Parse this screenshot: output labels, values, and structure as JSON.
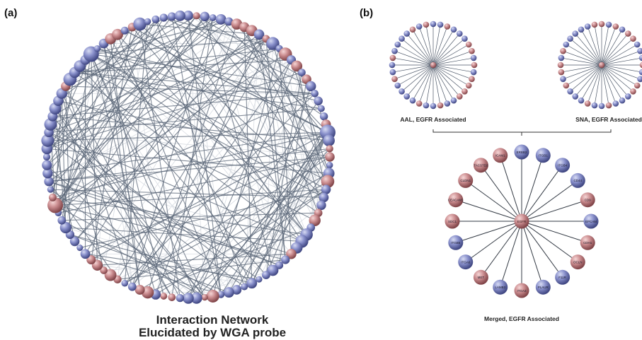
{
  "panels": {
    "a": {
      "label": "(a)",
      "caption_line1": "Interaction Network",
      "caption_line2": "Elucidated by WGA probe",
      "node_count": 108,
      "edge_count": 150
    },
    "b": {
      "label": "(b)",
      "aal_caption": "AAL, EGFR Associated",
      "sna_caption": "SNA, EGFR Associated",
      "merged_caption": "Merged, EGFR Associated",
      "aal_node_count": 36,
      "sna_node_count": 36,
      "merged_nodes": [
        "ERBB2",
        "ITGB1",
        "ITGB4",
        "CD44",
        "CD9",
        "EPCAM",
        "CDH1",
        "OCLN",
        "F11R",
        "PLAUR",
        "ITGA3",
        "LAMB3",
        "MET",
        "ITGA6",
        "ITGB5",
        "SDC1",
        "CEACAM1",
        "CLDN1",
        "TACSTD2",
        "ICAM1"
      ],
      "merged_hub": "EGFR"
    }
  },
  "colors": {
    "blue_node": "#7f86c4",
    "red_node": "#c98a8e",
    "edge": "#5b6778",
    "faint_edge": "#d9dde3"
  }
}
